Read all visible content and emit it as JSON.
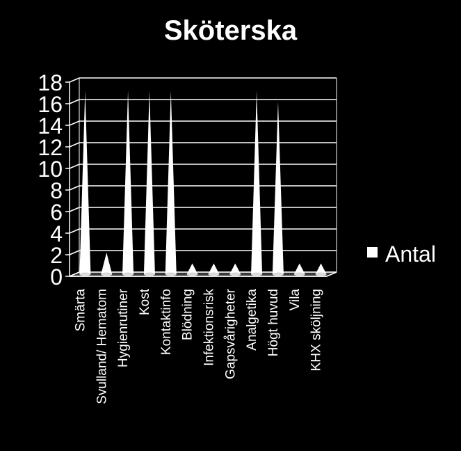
{
  "chart_data": {
    "type": "bar",
    "title": "Sköterska",
    "categories": [
      "Smärta",
      "Svulland/ Hematom",
      "Hygienrutiner",
      "Kost",
      "Kontaktinfo",
      "Blödning",
      "Infektionsrisk",
      "Gapsvårigheter",
      "Analgetika",
      "Högt huvud",
      "Vila",
      "KHX sköljning"
    ],
    "series": [
      {
        "name": "Antal",
        "values": [
          17,
          2,
          17,
          17,
          17,
          1,
          1,
          1,
          17,
          16,
          1,
          1
        ]
      }
    ],
    "y_ticks": [
      "0",
      "2",
      "4",
      "6",
      "8",
      "10",
      "12",
      "14",
      "16",
      "18"
    ],
    "ylim": [
      0,
      18
    ],
    "grid": true,
    "legend_position": "right",
    "colors": {
      "background": "#000000",
      "series": "#ffffff",
      "axis": "#ffffff"
    }
  }
}
